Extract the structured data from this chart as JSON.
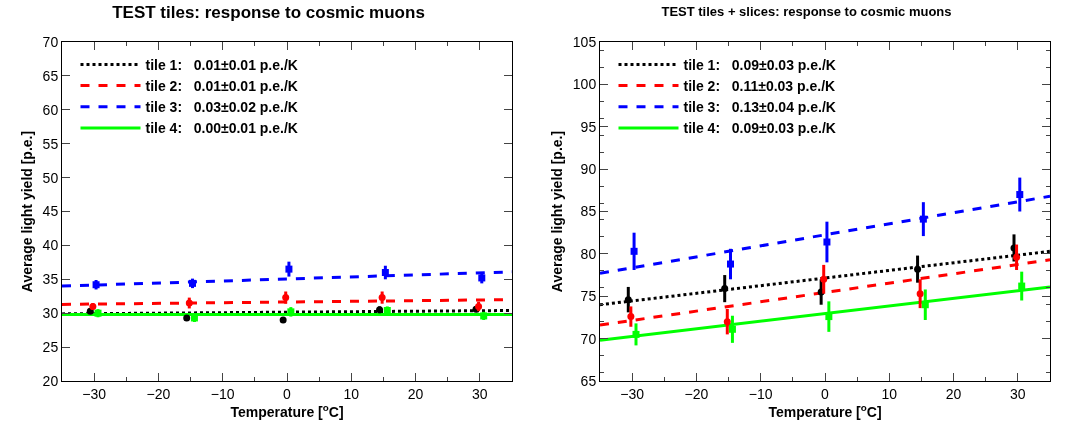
{
  "chart_data": [
    {
      "type": "scatter",
      "title": "TEST tiles: response to cosmic muons",
      "xlabel": "Temperature [$^{o}$C]",
      "ylabel": "Average light yield [p.e.]",
      "xlim": [
        -35,
        35
      ],
      "xticks": [
        {
          "value": -30,
          "label": "−30"
        },
        {
          "value": -20,
          "label": "−20"
        },
        {
          "value": -10,
          "label": "−10"
        },
        0,
        10,
        20,
        30
      ],
      "ylim": [
        20,
        70
      ],
      "yticks": [
        20,
        25,
        30,
        35,
        40,
        45,
        50,
        55,
        60,
        65,
        70
      ],
      "grid": false,
      "legend": "top left",
      "series": [
        {
          "type": "line",
          "name": "tile 1:   0.01±0.01 p.e./K",
          "color": "#000000",
          "line_style": "dotted",
          "x": [
            -35,
            35
          ],
          "values": [
            29.9,
            30.4
          ]
        },
        {
          "type": "line",
          "name": "tile 2:   0.01±0.01 p.e./K",
          "color": "#ff0000",
          "line_style": "dashed",
          "x": [
            -35,
            35
          ],
          "values": [
            31.3,
            32.0
          ]
        },
        {
          "type": "line",
          "name": "tile 3:   0.03±0.02 p.e./K",
          "color": "#0000ff",
          "line_style": "dashed",
          "x": [
            -35,
            35
          ],
          "values": [
            34.0,
            36.1
          ]
        },
        {
          "type": "line",
          "name": "tile 4:   0.00±0.01 p.e./K",
          "color": "#00ff00",
          "line_style": "solid",
          "x": [
            -35,
            35
          ],
          "values": [
            29.8,
            29.8
          ]
        },
        {
          "color": "#000000",
          "marker": "circle",
          "x": [
            -30.6,
            -15.6,
            -0.6,
            14.4,
            29.4
          ],
          "values": [
            30.3,
            29.3,
            29.0,
            30.5,
            30.6
          ],
          "errors": [
            0.4,
            0.3,
            0.4,
            0.5,
            0.4
          ]
        },
        {
          "color": "#ff0000",
          "marker": "circle",
          "x": [
            -30.2,
            -15.2,
            -0.2,
            14.8,
            29.8
          ],
          "values": [
            31.0,
            31.5,
            32.3,
            32.3,
            31.0
          ],
          "errors": [
            0.5,
            0.8,
            0.9,
            0.9,
            0.7
          ]
        },
        {
          "color": "#0000ff",
          "marker": "square",
          "x": [
            -29.7,
            -14.7,
            0.3,
            15.3,
            30.3
          ],
          "values": [
            34.2,
            34.4,
            36.5,
            36.0,
            35.2
          ],
          "errors": [
            0.7,
            0.7,
            1.1,
            1.0,
            0.8
          ]
        },
        {
          "color": "#00ff00",
          "marker": "square",
          "x": [
            -29.4,
            -14.4,
            0.6,
            15.6,
            30.6
          ],
          "values": [
            30.0,
            29.3,
            30.2,
            30.4,
            29.6
          ],
          "errors": [
            0.6,
            0.6,
            0.7,
            0.6,
            0.6
          ]
        }
      ]
    },
    {
      "type": "scatter",
      "title": "TEST tiles + slices: response to cosmic muons",
      "xlabel": "Temperature [$^{o}$C]",
      "ylabel": "Average light yield [p.e.]",
      "xlim": [
        -35,
        35
      ],
      "xticks": [
        {
          "value": -30,
          "label": "−30"
        },
        {
          "value": -20,
          "label": "−20"
        },
        {
          "value": -10,
          "label": "−10"
        },
        0,
        10,
        20,
        30
      ],
      "ylim": [
        65,
        105
      ],
      "yticks": [
        65,
        70,
        75,
        80,
        85,
        90,
        95,
        100,
        105
      ],
      "grid": false,
      "legend": "top left",
      "series": [
        {
          "type": "line",
          "name": "tile 1:   0.09±0.03 p.e./K",
          "color": "#000000",
          "line_style": "dotted",
          "x": [
            -35,
            35
          ],
          "values": [
            74.0,
            80.3
          ]
        },
        {
          "type": "line",
          "name": "tile 2:   0.11±0.03 p.e./K",
          "color": "#ff0000",
          "line_style": "dashed",
          "x": [
            -35,
            35
          ],
          "values": [
            71.6,
            79.3
          ]
        },
        {
          "type": "line",
          "name": "tile 3:   0.13±0.04 p.e./K",
          "color": "#0000ff",
          "line_style": "dashed",
          "x": [
            -35,
            35
          ],
          "values": [
            77.7,
            86.8
          ]
        },
        {
          "type": "line",
          "name": "tile 4:   0.09±0.03 p.e./K",
          "color": "#00ff00",
          "line_style": "solid",
          "x": [
            -35,
            35
          ],
          "values": [
            69.8,
            76.1
          ]
        },
        {
          "color": "#000000",
          "marker": "circle",
          "x": [
            -30.6,
            -15.6,
            -0.6,
            14.4,
            29.4
          ],
          "values": [
            74.6,
            75.9,
            75.5,
            78.2,
            80.7
          ],
          "errors": [
            1.5,
            1.6,
            1.5,
            1.6,
            1.6
          ]
        },
        {
          "color": "#ff0000",
          "marker": "circle",
          "x": [
            -30.2,
            -15.2,
            -0.2,
            14.8,
            29.8
          ],
          "values": [
            72.6,
            72.0,
            77.0,
            75.3,
            79.6
          ],
          "errors": [
            1.2,
            1.5,
            1.7,
            1.7,
            1.5
          ]
        },
        {
          "color": "#0000ff",
          "marker": "square",
          "x": [
            -29.7,
            -14.7,
            0.3,
            15.3,
            30.3
          ],
          "values": [
            80.3,
            78.8,
            81.4,
            84.1,
            87.0
          ],
          "errors": [
            2.2,
            1.8,
            2.4,
            2.0,
            2.0
          ]
        },
        {
          "color": "#00ff00",
          "marker": "square",
          "x": [
            -29.4,
            -14.4,
            0.6,
            15.6,
            30.6
          ],
          "values": [
            70.5,
            71.1,
            72.6,
            74.0,
            76.2
          ],
          "errors": [
            1.3,
            1.6,
            1.8,
            1.8,
            1.7
          ]
        }
      ]
    }
  ]
}
